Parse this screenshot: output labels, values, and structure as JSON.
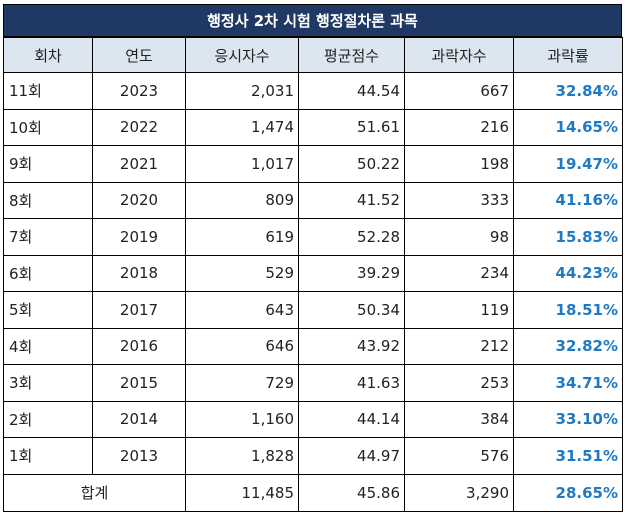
{
  "title": "행정사 2차 시험 행정절차론 과목",
  "headers": [
    "회차",
    "연도",
    "응시자수",
    "평균점수",
    "과락자수",
    "과락률"
  ],
  "rows": [
    {
      "round": "11회",
      "year": "2023",
      "applicants": "2,031",
      "avg": "44.54",
      "fail": "667",
      "rate": "32.84%"
    },
    {
      "round": "10회",
      "year": "2022",
      "applicants": "1,474",
      "avg": "51.61",
      "fail": "216",
      "rate": "14.65%"
    },
    {
      "round": "9회",
      "year": "2021",
      "applicants": "1,017",
      "avg": "50.22",
      "fail": "198",
      "rate": "19.47%"
    },
    {
      "round": "8회",
      "year": "2020",
      "applicants": "809",
      "avg": "41.52",
      "fail": "333",
      "rate": "41.16%"
    },
    {
      "round": "7회",
      "year": "2019",
      "applicants": "619",
      "avg": "52.28",
      "fail": "98",
      "rate": "15.83%"
    },
    {
      "round": "6회",
      "year": "2018",
      "applicants": "529",
      "avg": "39.29",
      "fail": "234",
      "rate": "44.23%"
    },
    {
      "round": "5회",
      "year": "2017",
      "applicants": "643",
      "avg": "50.34",
      "fail": "119",
      "rate": "18.51%"
    },
    {
      "round": "4회",
      "year": "2016",
      "applicants": "646",
      "avg": "43.92",
      "fail": "212",
      "rate": "32.82%"
    },
    {
      "round": "3회",
      "year": "2015",
      "applicants": "729",
      "avg": "41.63",
      "fail": "253",
      "rate": "34.71%"
    },
    {
      "round": "2회",
      "year": "2014",
      "applicants": "1,160",
      "avg": "44.14",
      "fail": "384",
      "rate": "33.10%"
    },
    {
      "round": "1회",
      "year": "2013",
      "applicants": "1,828",
      "avg": "44.97",
      "fail": "576",
      "rate": "31.51%"
    }
  ],
  "total": {
    "label": "합계",
    "applicants": "11,485",
    "avg": "45.86",
    "fail": "3,290",
    "rate": "28.65%"
  },
  "colors": {
    "title_bg": "#1f3864",
    "header_bg": "#dce6f1",
    "rate_text": "#1f7ac5"
  }
}
